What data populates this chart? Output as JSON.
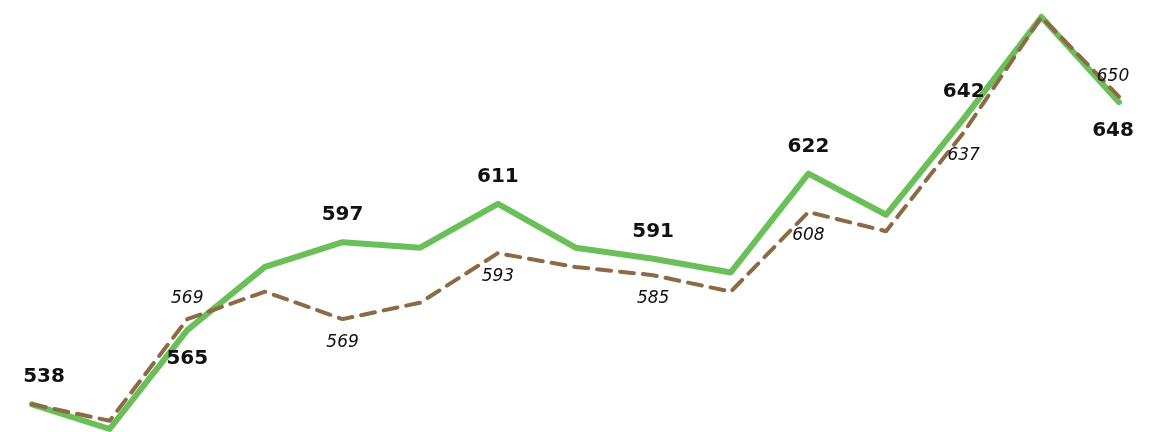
{
  "chart_data": {
    "type": "line",
    "categories": [
      null,
      null,
      null,
      null,
      null,
      null,
      null,
      null,
      null,
      null,
      null,
      null,
      null,
      null,
      null
    ],
    "series": [
      {
        "color": "#6abf59",
        "line_style": "solid",
        "values": [
          538,
          529,
          565,
          588,
          597,
          595,
          611,
          595,
          591,
          586,
          622,
          607,
          642,
          679,
          648
        ],
        "value_labels": [
          "538",
          null,
          "565",
          null,
          "597",
          null,
          "611",
          null,
          "591",
          null,
          "622",
          null,
          "642",
          null,
          "648"
        ]
      },
      {
        "color": "#8b6a45",
        "line_style": "dashed",
        "values": [
          538,
          532,
          569,
          579,
          569,
          575,
          593,
          588,
          585,
          579,
          608,
          601,
          637,
          679,
          650
        ],
        "value_labels": [
          null,
          null,
          "569",
          null,
          "569",
          null,
          "593",
          null,
          "585",
          null,
          "608",
          null,
          "637",
          null,
          "650"
        ]
      }
    ]
  }
}
